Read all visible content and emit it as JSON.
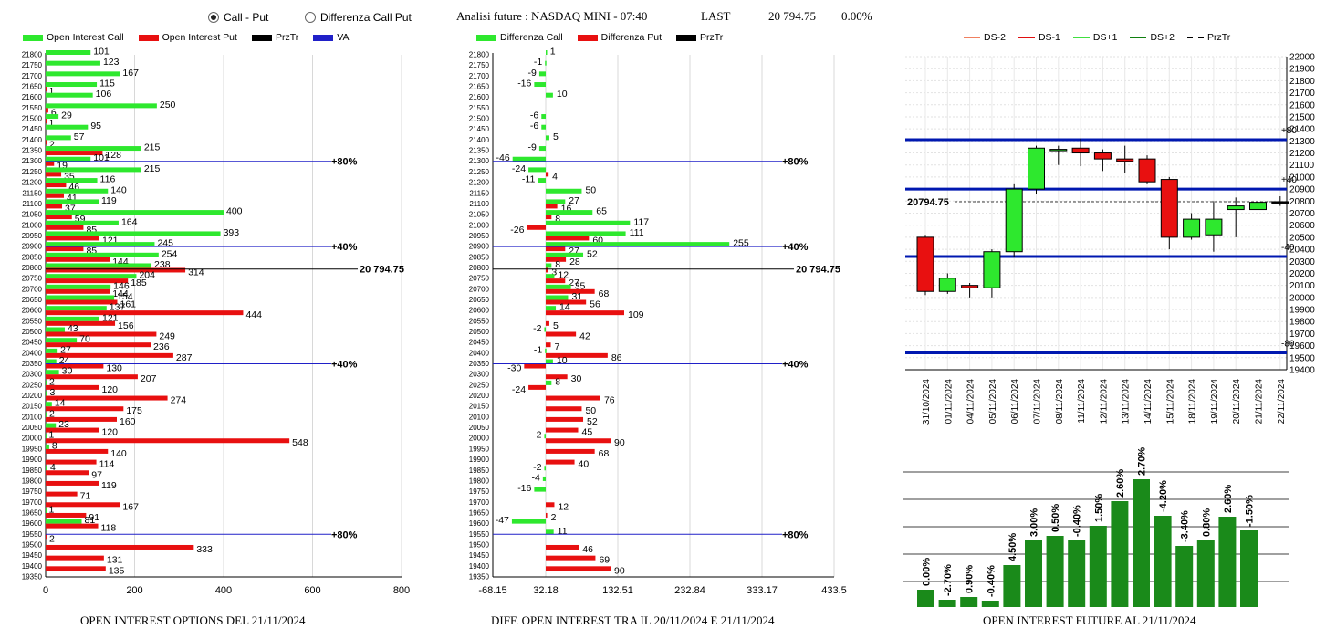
{
  "header": {
    "radio_call_put": "Call - Put",
    "radio_differenza": "Differenza Call Put",
    "title": "Analisi future : NASDAQ MINI - 07:40",
    "last_label": "LAST",
    "last_value": "20 794.75",
    "change": "0.00%"
  },
  "legend1": [
    "Open Interest Call",
    "Open Interest Put",
    "PrzTr",
    "VA"
  ],
  "legend2": [
    "Differenza Call",
    "Differenza Put",
    "PrzTr"
  ],
  "legend3": [
    "DS-2",
    "DS-1",
    "DS+1",
    "DS+2",
    "PrzTr"
  ],
  "captions": {
    "chart1": "OPEN INTEREST OPTIONS DEL 21/11/2024",
    "chart2": "DIFF. OPEN INTEREST TRA IL 20/11/2024 E 21/11/2024",
    "chart3": "OPEN INTEREST FUTURE AL 21/11/2024"
  },
  "colors": {
    "call": "#2ee82e",
    "put": "#e81010",
    "va": "#2020c8",
    "przTr": "#000000",
    "ds_line": "#0018b0",
    "bar_green": "#1a8a1a"
  },
  "chart_data": [
    {
      "type": "bar",
      "orientation": "horizontal",
      "title": "OPEN INTEREST OPTIONS DEL 21/11/2024",
      "strikes": [
        21800,
        21750,
        21700,
        21650,
        21600,
        21550,
        21500,
        21450,
        21400,
        21350,
        21300,
        21250,
        21200,
        21150,
        21100,
        21050,
        21000,
        20950,
        20900,
        20850,
        20800,
        20750,
        20700,
        20650,
        20600,
        20550,
        20500,
        20450,
        20400,
        20350,
        20300,
        20250,
        20200,
        20150,
        20100,
        20050,
        20000,
        19950,
        19900,
        19850,
        19800,
        19750,
        19700,
        19650,
        19600,
        19550,
        19500,
        19450,
        19400,
        19350
      ],
      "series": [
        {
          "name": "Open Interest Call",
          "values": [
            101,
            123,
            167,
            115,
            106,
            250,
            29,
            95,
            57,
            215,
            101,
            215,
            116,
            140,
            119,
            400,
            164,
            393,
            245,
            254,
            238,
            204,
            146,
            154,
            137,
            121,
            43,
            70,
            27,
            24,
            30,
            2,
            3,
            14,
            2,
            23,
            1,
            8,
            null,
            4,
            null,
            null,
            null,
            1,
            81,
            null,
            null,
            null,
            null,
            null
          ]
        },
        {
          "name": "Open Interest Put",
          "values": [
            null,
            null,
            null,
            1,
            null,
            6,
            1,
            null,
            2,
            128,
            19,
            35,
            46,
            41,
            37,
            59,
            85,
            121,
            85,
            144,
            314,
            185,
            144,
            161,
            444,
            156,
            249,
            236,
            287,
            130,
            207,
            120,
            274,
            175,
            160,
            120,
            548,
            140,
            114,
            97,
            119,
            71,
            167,
            91,
            118,
            2,
            333,
            131,
            135,
            null
          ]
        }
      ],
      "price_lines": [
        {
          "label": "80%",
          "strike": 21300
        },
        {
          "label": "40%",
          "strike": 20900
        },
        {
          "label": "20 794.75",
          "strike": 20794.75
        },
        {
          "label": "40%",
          "strike": 20350
        },
        {
          "label": "80%",
          "strike": 19550
        }
      ],
      "xlim": [
        0,
        800
      ],
      "xticks": [
        0,
        200,
        400,
        600,
        800
      ]
    },
    {
      "type": "bar",
      "orientation": "horizontal",
      "title": "DIFF. OPEN INTEREST TRA IL 20/11/2024 E 21/11/2024",
      "strikes": [
        21800,
        21750,
        21700,
        21650,
        21600,
        21550,
        21500,
        21450,
        21400,
        21350,
        21300,
        21250,
        21200,
        21150,
        21100,
        21050,
        21000,
        20950,
        20900,
        20850,
        20800,
        20750,
        20700,
        20650,
        20600,
        20550,
        20500,
        20450,
        20400,
        20350,
        20300,
        20250,
        20200,
        20150,
        20100,
        20050,
        20000,
        19950,
        19900,
        19850,
        19800,
        19750,
        19700,
        19650,
        19600,
        19550,
        19500,
        19450,
        19400,
        19350
      ],
      "series": [
        {
          "name": "Differenza Call",
          "values": [
            1,
            -1,
            -9,
            -16,
            10,
            null,
            -6,
            -6,
            5,
            -9,
            -46,
            -24,
            -11,
            50,
            27,
            65,
            117,
            111,
            255,
            52,
            8,
            12,
            35,
            31,
            14,
            null,
            -2,
            null,
            -1,
            10,
            null,
            8,
            null,
            null,
            null,
            null,
            -2,
            null,
            null,
            -2,
            -4,
            -16,
            null,
            null,
            -47,
            11,
            null,
            null,
            null,
            null
          ]
        },
        {
          "name": "Differenza Put",
          "values": [
            null,
            null,
            null,
            null,
            null,
            null,
            null,
            null,
            null,
            null,
            null,
            4,
            null,
            null,
            16,
            8,
            -26,
            60,
            27,
            28,
            3,
            27,
            68,
            56,
            109,
            5,
            42,
            7,
            86,
            -30,
            30,
            -24,
            76,
            50,
            52,
            45,
            90,
            68,
            40,
            null,
            null,
            null,
            12,
            2,
            null,
            null,
            46,
            69,
            90,
            null
          ]
        }
      ],
      "price_lines": [
        {
          "label": "80%",
          "strike": 21300
        },
        {
          "label": "40%",
          "strike": 20900
        },
        {
          "label": "20 794.75",
          "strike": 20794.75
        },
        {
          "label": "40%",
          "strike": 20350
        },
        {
          "label": "80%",
          "strike": 19550
        }
      ],
      "xticks": [
        "-68.15",
        "32.18",
        "132.51",
        "232.84",
        "333.17",
        "433.5"
      ],
      "xlim": [
        -68.15,
        433.5
      ]
    },
    {
      "type": "candlestick",
      "dates": [
        "31/10/2024",
        "01/11/2024",
        "04/11/2024",
        "05/11/2024",
        "06/11/2024",
        "07/11/2024",
        "08/11/2024",
        "11/11/2024",
        "12/11/2024",
        "13/11/2024",
        "14/11/2024",
        "15/11/2024",
        "18/11/2024",
        "19/11/2024",
        "20/11/2024",
        "21/11/2024",
        "22/11/2024"
      ],
      "open": [
        20500,
        20050,
        20100,
        20080,
        20380,
        20900,
        21220,
        21240,
        21200,
        21150,
        21150,
        20980,
        20500,
        20520,
        20730,
        20730,
        20795
      ],
      "close": [
        20050,
        20160,
        20080,
        20380,
        20900,
        21240,
        21230,
        21200,
        21150,
        21130,
        20960,
        20500,
        20650,
        20650,
        20760,
        20790,
        20795
      ],
      "high": [
        20520,
        20200,
        20120,
        20400,
        20940,
        21260,
        21260,
        21320,
        21230,
        21260,
        21180,
        21000,
        20700,
        20800,
        20830,
        20900,
        20840
      ],
      "low": [
        20020,
        20030,
        20000,
        20000,
        20340,
        20860,
        21100,
        21090,
        21050,
        21030,
        20940,
        20400,
        20480,
        20380,
        20500,
        20500,
        20760
      ],
      "ds_levels": [
        {
          "label": "+80",
          "value": 21310
        },
        {
          "label": "+40",
          "value": 20900
        },
        {
          "label": "-40",
          "value": 20340
        },
        {
          "label": "-80",
          "value": 19540
        }
      ],
      "przTr": 20794.75,
      "price_label": "20794.75",
      "ylim": [
        19400,
        22000
      ]
    },
    {
      "type": "bar",
      "title": "OPEN INTEREST FUTURE AL 21/11/2024",
      "values": [
        0.0,
        -2.7,
        0.9,
        -0.4,
        4.5,
        3.0,
        0.5,
        -0.4,
        1.5,
        2.6,
        2.7,
        -4.2,
        -3.4,
        0.8,
        2.6,
        -1.5
      ],
      "labels": [
        "0.00%",
        "-2.70%",
        "0.90%",
        "-0.40%",
        "4.50%",
        "3.00%",
        "0.50%",
        "-0.40%",
        "1.50%",
        "2.60%",
        "2.70%",
        "-4.20%",
        "-3.40%",
        "0.80%",
        "2.60%",
        "-1.50%"
      ],
      "levels": [
        19,
        8,
        11,
        7,
        46,
        73,
        78,
        73,
        89,
        116,
        140,
        100,
        67,
        73,
        99,
        84
      ]
    }
  ]
}
